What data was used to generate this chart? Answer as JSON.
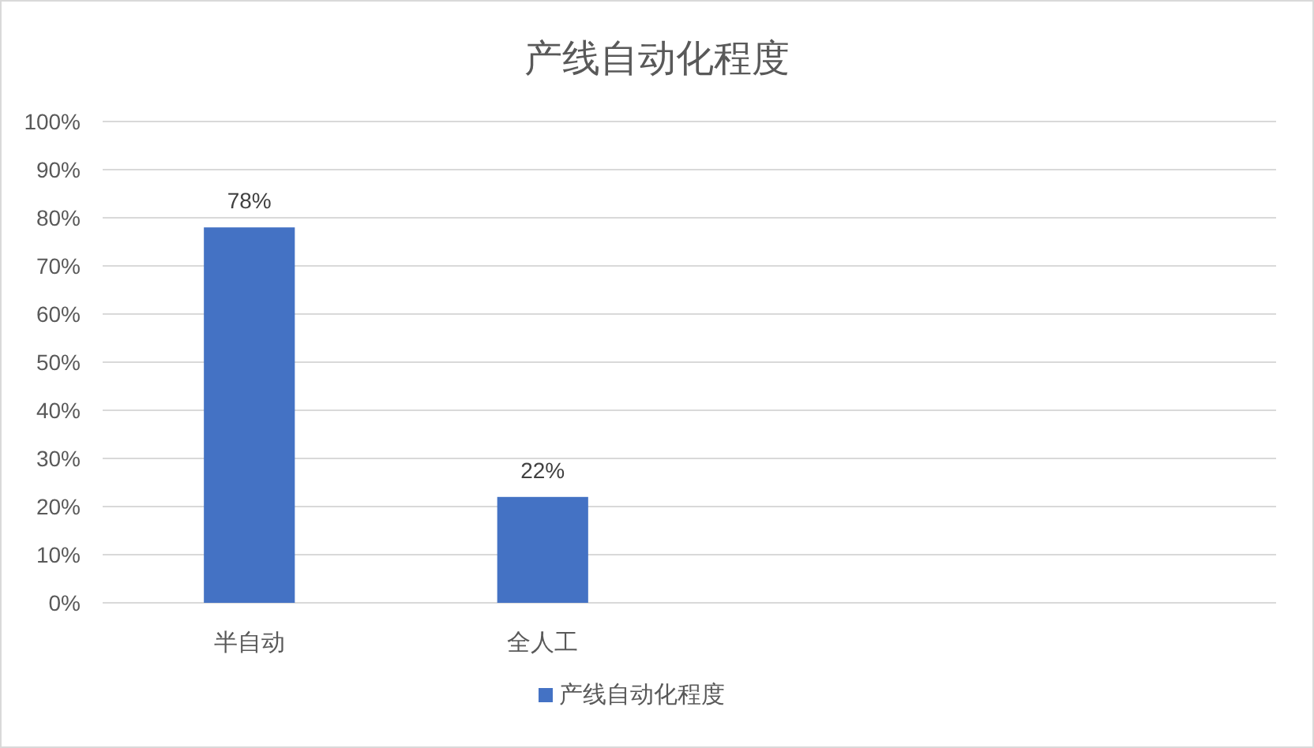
{
  "chart_data": {
    "type": "bar",
    "title": "产线自动化程度",
    "categories": [
      "半自动",
      "全人工",
      null,
      null
    ],
    "series": [
      {
        "name": "产线自动化程度",
        "color": "#4472c4",
        "values": [
          78,
          22,
          null,
          null
        ],
        "value_labels": [
          "78%",
          "22%",
          null,
          null
        ]
      }
    ],
    "ylim": [
      0,
      100
    ],
    "yticks": [
      {
        "value": 0,
        "label": "0%"
      },
      {
        "value": 10,
        "label": "10%"
      },
      {
        "value": 20,
        "label": "20%"
      },
      {
        "value": 30,
        "label": "30%"
      },
      {
        "value": 40,
        "label": "40%"
      },
      {
        "value": 50,
        "label": "50%"
      },
      {
        "value": 60,
        "label": "60%"
      },
      {
        "value": 70,
        "label": "70%"
      },
      {
        "value": 80,
        "label": "80%"
      },
      {
        "value": 90,
        "label": "90%"
      },
      {
        "value": 100,
        "label": "100%"
      }
    ],
    "grid": "y",
    "legend": "bottom"
  }
}
